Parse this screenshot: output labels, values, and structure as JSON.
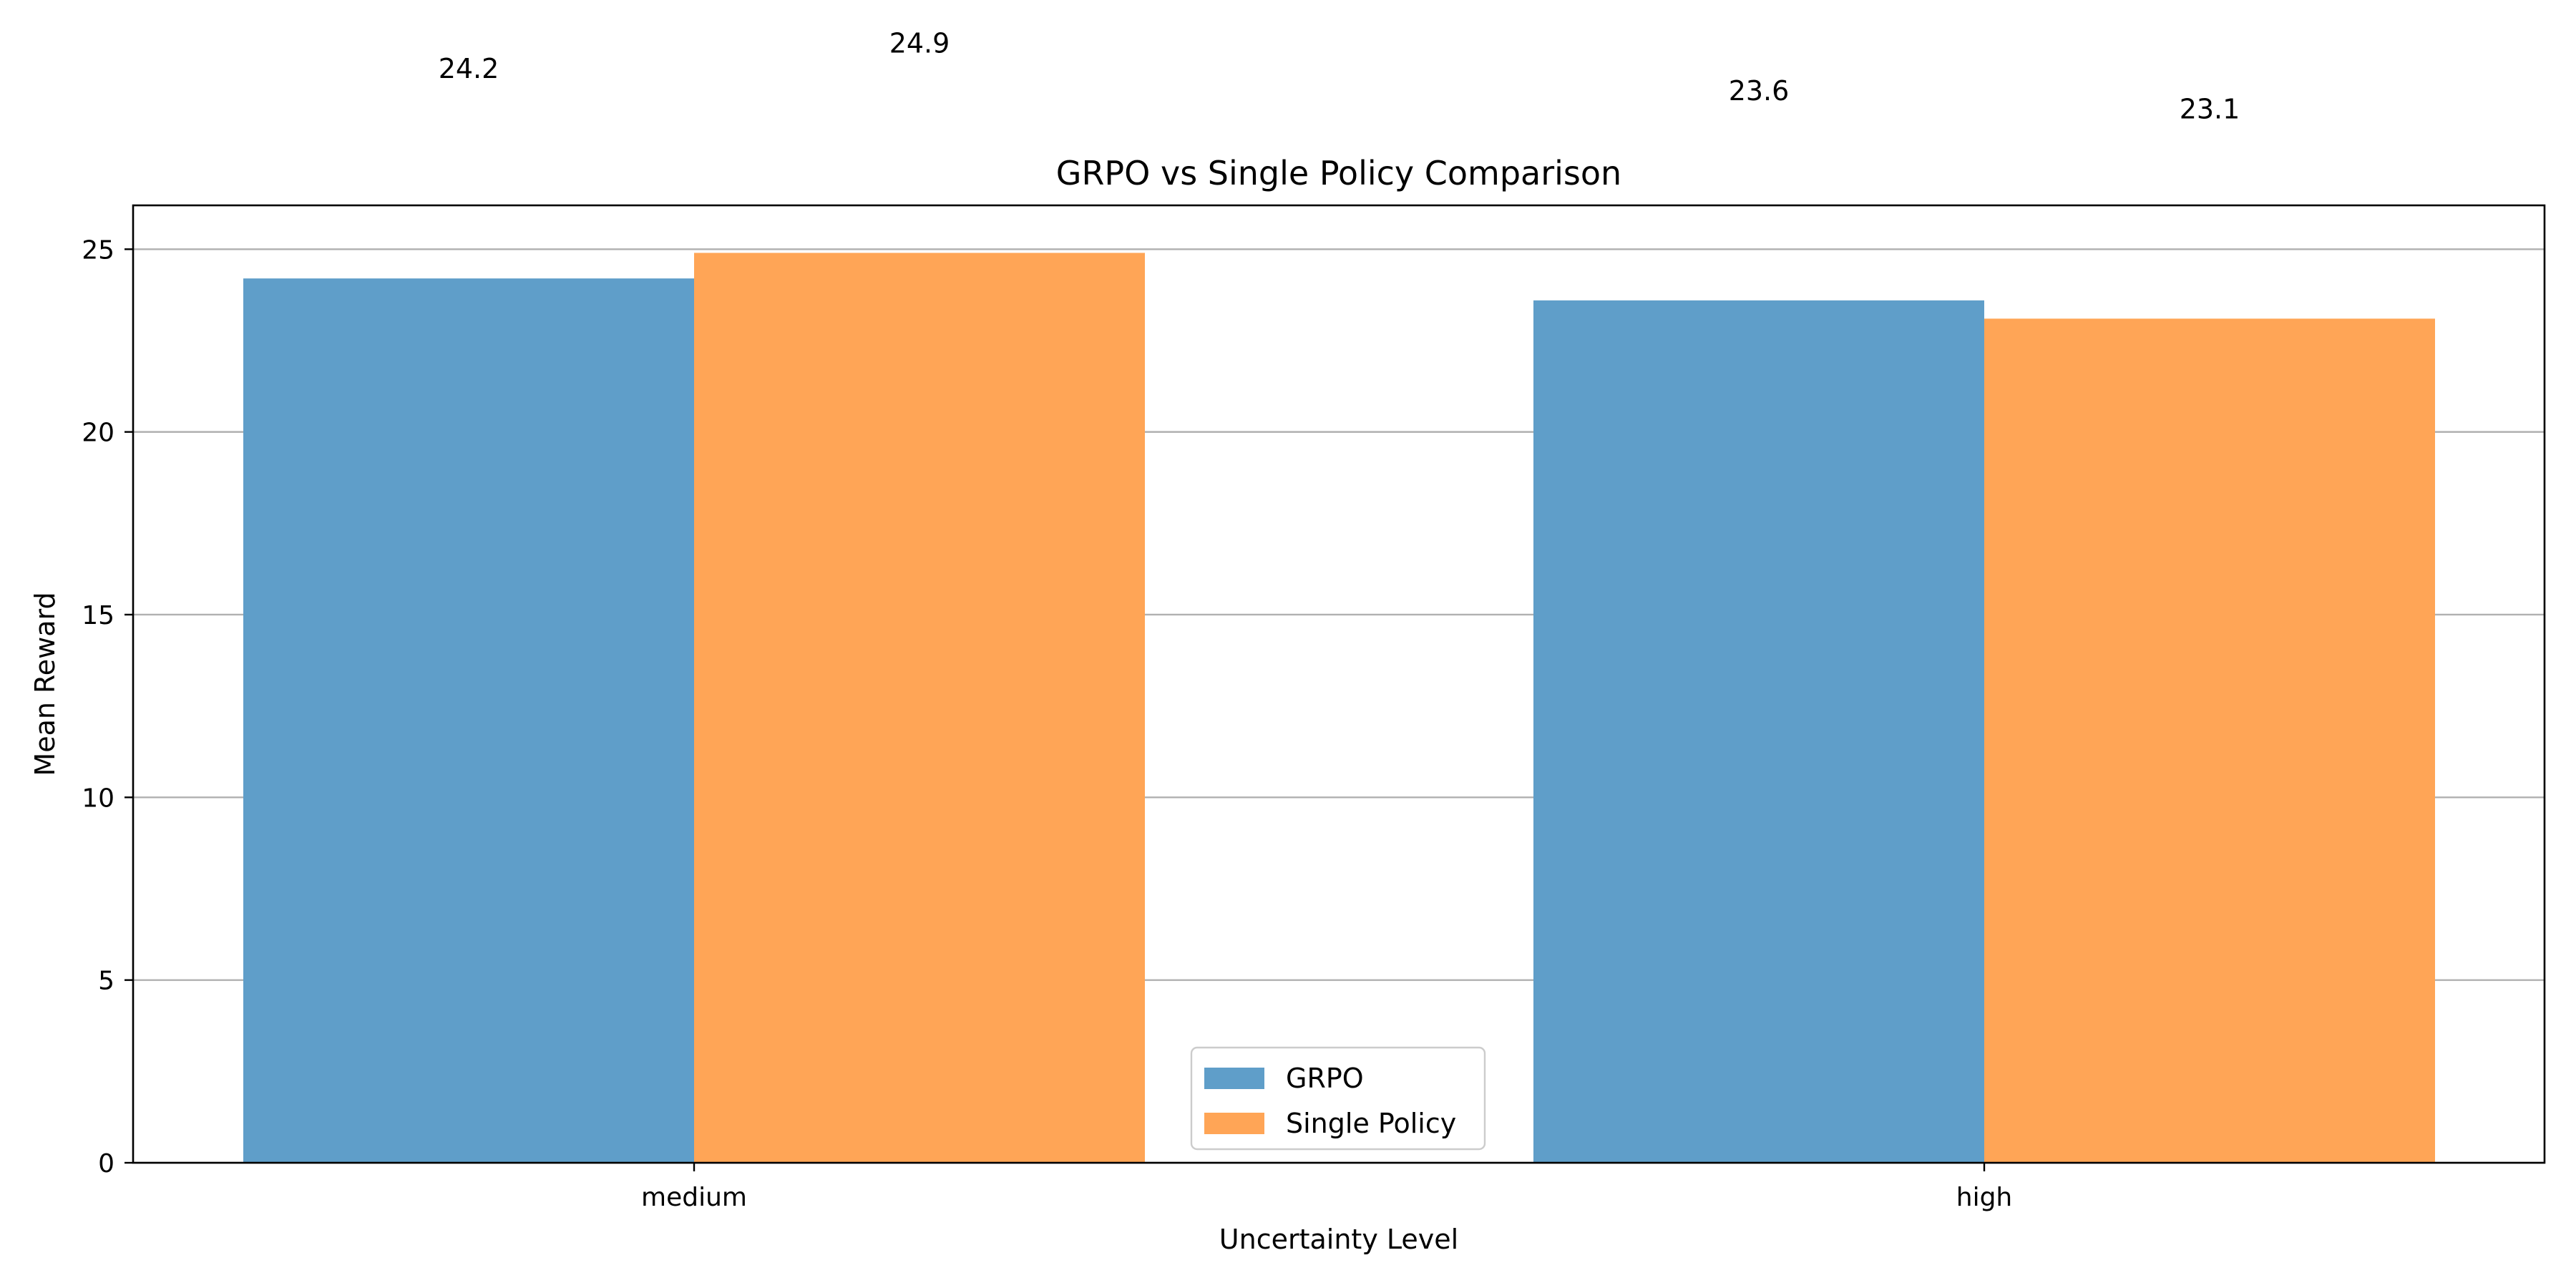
{
  "chart_data": {
    "type": "bar",
    "title": "GRPO vs Single Policy Comparison",
    "xlabel": "Uncertainty Level",
    "ylabel": "Mean Reward",
    "categories": [
      "medium",
      "high"
    ],
    "series": [
      {
        "name": "GRPO",
        "values": [
          24.2,
          23.6
        ],
        "color": "#5f9ec9"
      },
      {
        "name": "Single Policy",
        "values": [
          24.9,
          23.1
        ],
        "color": "#ffa556"
      }
    ],
    "ylim": [
      0,
      26.2
    ],
    "yticks": [
      0,
      5,
      10,
      15,
      20,
      25
    ],
    "grid": "horizontal",
    "legend": "bottom-center"
  }
}
